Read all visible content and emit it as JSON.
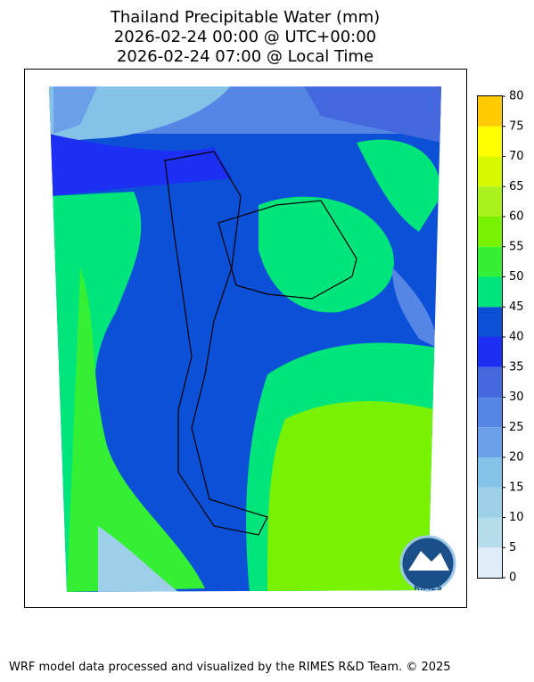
{
  "header": {
    "title_lines": [
      "Thailand Precipitable Water (mm)",
      "2026-02-24 00:00 @ UTC+00:00",
      "2026-02-24 07:00 @ Local Time"
    ]
  },
  "colorbar": {
    "levels": [
      0,
      5,
      10,
      15,
      20,
      25,
      30,
      35,
      40,
      45,
      50,
      55,
      60,
      65,
      70,
      75,
      80
    ],
    "colors": [
      "#deedf7",
      "#b5dcea",
      "#9dd0e8",
      "#85c2e8",
      "#6b9fe8",
      "#5586e6",
      "#4468de",
      "#1c2ff2",
      "#0b50d6",
      "#00e47c",
      "#34ef34",
      "#78f200",
      "#a9f21e",
      "#d9f900",
      "#ffff00",
      "#ffcc00"
    ]
  },
  "logo": {
    "label": "RIMES"
  },
  "footer": {
    "text": "WRF model data processed and visualized by the RIMES R&D Team. © 2025"
  }
}
